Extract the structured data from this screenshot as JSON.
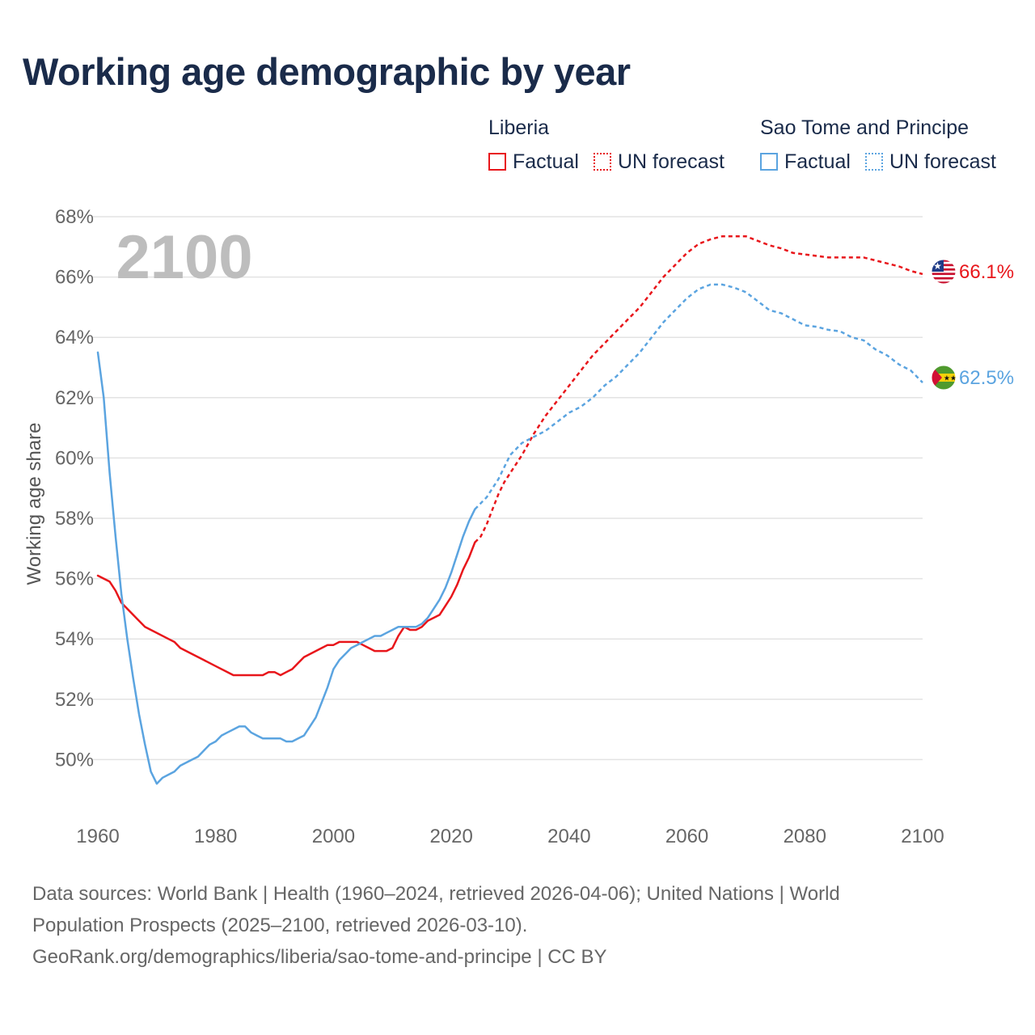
{
  "title": "Working age demographic by year",
  "legend": {
    "groups": [
      {
        "name": "Liberia",
        "color": "#e8161b",
        "factual_label": "Factual",
        "forecast_label": "UN forecast"
      },
      {
        "name": "Sao Tome and Principe",
        "color": "#5ba4e0",
        "factual_label": "Factual",
        "forecast_label": "UN forecast"
      }
    ]
  },
  "year_watermark": "2100",
  "footer": {
    "line1": "Data sources: World Bank | Health (1960–2024, retrieved 2026-04-06); United Nations | World",
    "line2": "Population Prospects (2025–2100, retrieved 2026-03-10).",
    "line3": "GeoRank.org/demographics/liberia/sao-tome-and-principe | CC BY"
  },
  "chart_data": {
    "type": "line",
    "title": "Working age demographic by year",
    "xlabel": "",
    "ylabel": "Working age share",
    "xlim": [
      1960,
      2100
    ],
    "ylim": [
      48,
      68
    ],
    "x_ticks": [
      "1960",
      "1980",
      "2000",
      "2020",
      "2040",
      "2060",
      "2080",
      "2100"
    ],
    "y_ticks": [
      "50%",
      "52%",
      "54%",
      "56%",
      "58%",
      "60%",
      "62%",
      "64%",
      "66%",
      "68%"
    ],
    "grid": true,
    "series": [
      {
        "name": "Liberia",
        "color": "#e8161b",
        "end_label": "66.1%",
        "flag": "liberia-flag",
        "factual": {
          "x": [
            1960,
            1962,
            1963,
            1964,
            1965,
            1966,
            1968,
            1969,
            1972,
            1973,
            1974,
            1976,
            1978,
            1980,
            1982,
            1983,
            1985,
            1987,
            1988,
            1989,
            1990,
            1991,
            1992,
            1993,
            1994,
            1995,
            1996,
            1998,
            1999,
            2000,
            2001,
            2002,
            2004,
            2005,
            2006,
            2007,
            2009,
            2010,
            2011,
            2012,
            2013,
            2014,
            2015,
            2016,
            2018,
            2019,
            2020,
            2021,
            2022,
            2023,
            2024
          ],
          "y": [
            56.1,
            55.9,
            55.6,
            55.2,
            55.0,
            54.8,
            54.4,
            54.3,
            54.0,
            53.9,
            53.7,
            53.5,
            53.3,
            53.1,
            52.9,
            52.8,
            52.8,
            52.8,
            52.8,
            52.9,
            52.9,
            52.8,
            52.9,
            53.0,
            53.2,
            53.4,
            53.5,
            53.7,
            53.8,
            53.8,
            53.9,
            53.9,
            53.9,
            53.8,
            53.7,
            53.6,
            53.6,
            53.7,
            54.1,
            54.4,
            54.3,
            54.3,
            54.4,
            54.6,
            54.8,
            55.1,
            55.4,
            55.8,
            56.3,
            56.7,
            57.2
          ]
        },
        "forecast": {
          "x": [
            2024,
            2025,
            2026,
            2027,
            2028,
            2029,
            2030,
            2032,
            2034,
            2036,
            2038,
            2040,
            2042,
            2044,
            2046,
            2048,
            2050,
            2052,
            2054,
            2056,
            2058,
            2060,
            2062,
            2064,
            2066,
            2068,
            2070,
            2072,
            2074,
            2076,
            2078,
            2080,
            2082,
            2084,
            2086,
            2088,
            2090,
            2092,
            2094,
            2096,
            2098,
            2100
          ],
          "y": [
            57.2,
            57.4,
            57.8,
            58.3,
            58.8,
            59.2,
            59.5,
            60.1,
            60.8,
            61.4,
            61.9,
            62.4,
            62.9,
            63.4,
            63.8,
            64.2,
            64.6,
            65.0,
            65.5,
            66.0,
            66.4,
            66.8,
            67.1,
            67.25,
            67.35,
            67.35,
            67.35,
            67.2,
            67.05,
            66.95,
            66.8,
            66.75,
            66.7,
            66.65,
            66.65,
            66.65,
            66.65,
            66.55,
            66.45,
            66.35,
            66.2,
            66.1
          ]
        }
      },
      {
        "name": "Sao Tome and Principe",
        "color": "#5ba4e0",
        "end_label": "62.5%",
        "flag": "sao-tome-and-principe-flag",
        "factual": {
          "x": [
            1960,
            1961,
            1962,
            1963,
            1964,
            1965,
            1966,
            1967,
            1968,
            1969,
            1970,
            1971,
            1972,
            1973,
            1974,
            1975,
            1976,
            1977,
            1978,
            1979,
            1980,
            1981,
            1982,
            1983,
            1984,
            1985,
            1986,
            1987,
            1988,
            1989,
            1990,
            1991,
            1992,
            1993,
            1994,
            1995,
            1996,
            1997,
            1998,
            1999,
            2000,
            2001,
            2002,
            2003,
            2004,
            2005,
            2006,
            2007,
            2008,
            2009,
            2010,
            2011,
            2012,
            2013,
            2014,
            2015,
            2016,
            2017,
            2018,
            2019,
            2020,
            2021,
            2022,
            2023,
            2024
          ],
          "y": [
            63.5,
            62.0,
            59.5,
            57.4,
            55.5,
            54.0,
            52.7,
            51.5,
            50.5,
            49.6,
            49.2,
            49.4,
            49.5,
            49.6,
            49.8,
            49.9,
            50.0,
            50.1,
            50.3,
            50.5,
            50.6,
            50.8,
            50.9,
            51.0,
            51.1,
            51.1,
            50.9,
            50.8,
            50.7,
            50.7,
            50.7,
            50.7,
            50.6,
            50.6,
            50.7,
            50.8,
            51.1,
            51.4,
            51.9,
            52.4,
            53.0,
            53.3,
            53.5,
            53.7,
            53.8,
            53.9,
            54.0,
            54.1,
            54.1,
            54.2,
            54.3,
            54.4,
            54.4,
            54.4,
            54.4,
            54.5,
            54.7,
            55.0,
            55.3,
            55.7,
            56.2,
            56.8,
            57.4,
            57.9,
            58.3
          ]
        },
        "forecast": {
          "x": [
            2024,
            2026,
            2028,
            2030,
            2032,
            2034,
            2036,
            2038,
            2040,
            2042,
            2044,
            2046,
            2048,
            2050,
            2052,
            2054,
            2056,
            2058,
            2060,
            2062,
            2064,
            2066,
            2068,
            2070,
            2072,
            2074,
            2076,
            2078,
            2080,
            2082,
            2084,
            2086,
            2088,
            2090,
            2092,
            2094,
            2096,
            2098,
            2100
          ],
          "y": [
            58.3,
            58.7,
            59.3,
            60.1,
            60.5,
            60.7,
            60.9,
            61.2,
            61.5,
            61.7,
            62.0,
            62.4,
            62.7,
            63.1,
            63.5,
            64.0,
            64.5,
            64.9,
            65.3,
            65.6,
            65.75,
            65.75,
            65.65,
            65.5,
            65.2,
            64.9,
            64.8,
            64.6,
            64.4,
            64.35,
            64.25,
            64.2,
            64.0,
            63.9,
            63.6,
            63.4,
            63.1,
            62.9,
            62.5
          ]
        }
      }
    ]
  }
}
